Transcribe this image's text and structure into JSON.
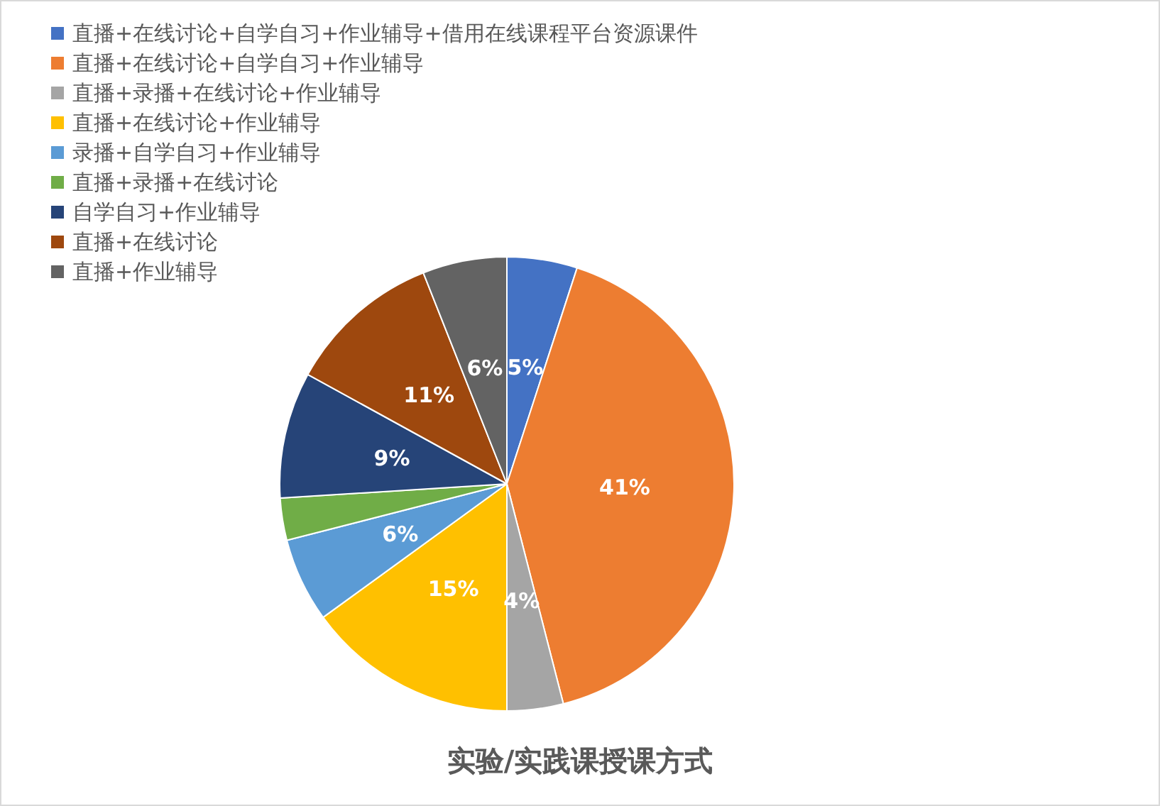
{
  "chart_data": {
    "type": "pie",
    "title": "实验/实践课授课方式",
    "categories": [
      "直播+在线讨论+自学自习+作业辅导+借用在线课程平台资源课件",
      "直播+在线讨论+自学自习+作业辅导",
      "直播+录播+在线讨论+作业辅导",
      "直播+在线讨论+作业辅导",
      "录播+自学自习+作业辅导",
      "直播+录播+在线讨论",
      "自学自习+作业辅导",
      "直播+在线讨论",
      "直播+作业辅导"
    ],
    "values": [
      5,
      41,
      4,
      15,
      6,
      3,
      9,
      11,
      6
    ],
    "value_labels": [
      "5%",
      "41%",
      "4%",
      "15%",
      "6%",
      null,
      "9%",
      "11%",
      "6%"
    ],
    "colors": [
      "#4472c4",
      "#ed7d31",
      "#a5a5a5",
      "#ffc000",
      "#5b9bd5",
      "#70ad47",
      "#264478",
      "#9e480e",
      "#636363"
    ],
    "legend": "top left"
  }
}
